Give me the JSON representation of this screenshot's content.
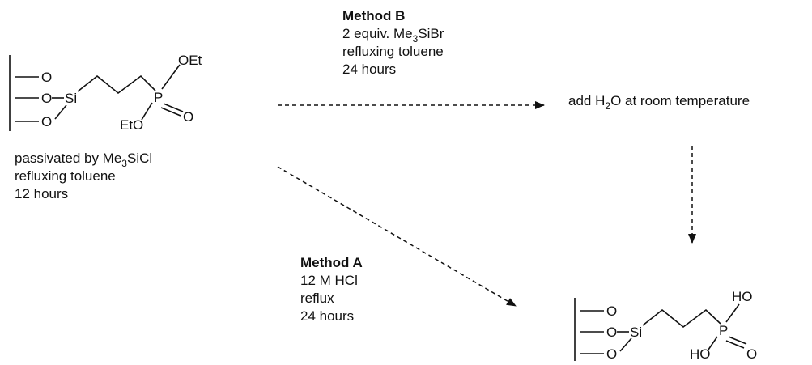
{
  "start_material": {
    "atoms": {
      "o1": "O",
      "o2": "O",
      "o3": "O",
      "si": "Si",
      "p": "P",
      "oet_top": "OEt",
      "eto": "EtO",
      "o_double": "O"
    },
    "conditions": {
      "line1_prefix": "passivated by Me",
      "line1_sub": "3",
      "line1_suffix": "SiCl",
      "line2": "refluxing toluene",
      "line3": "12 hours"
    }
  },
  "method_b": {
    "title": "Method B",
    "line1_prefix": "2 equiv. Me",
    "line1_sub": "3",
    "line1_suffix": "SiBr",
    "line2": "refluxing toluene",
    "line3": "24 hours"
  },
  "intermediate": {
    "prefix": "add H",
    "sub": "2",
    "suffix": "O at room temperature"
  },
  "method_a": {
    "title": "Method A",
    "line1": "12 M HCl",
    "line2": "reflux",
    "line3": "24 hours"
  },
  "product": {
    "atoms": {
      "o1": "O",
      "o2": "O",
      "o3": "O",
      "si": "Si",
      "p": "P",
      "ho_top": "HO",
      "ho_left": "HO",
      "o_double": "O"
    }
  }
}
